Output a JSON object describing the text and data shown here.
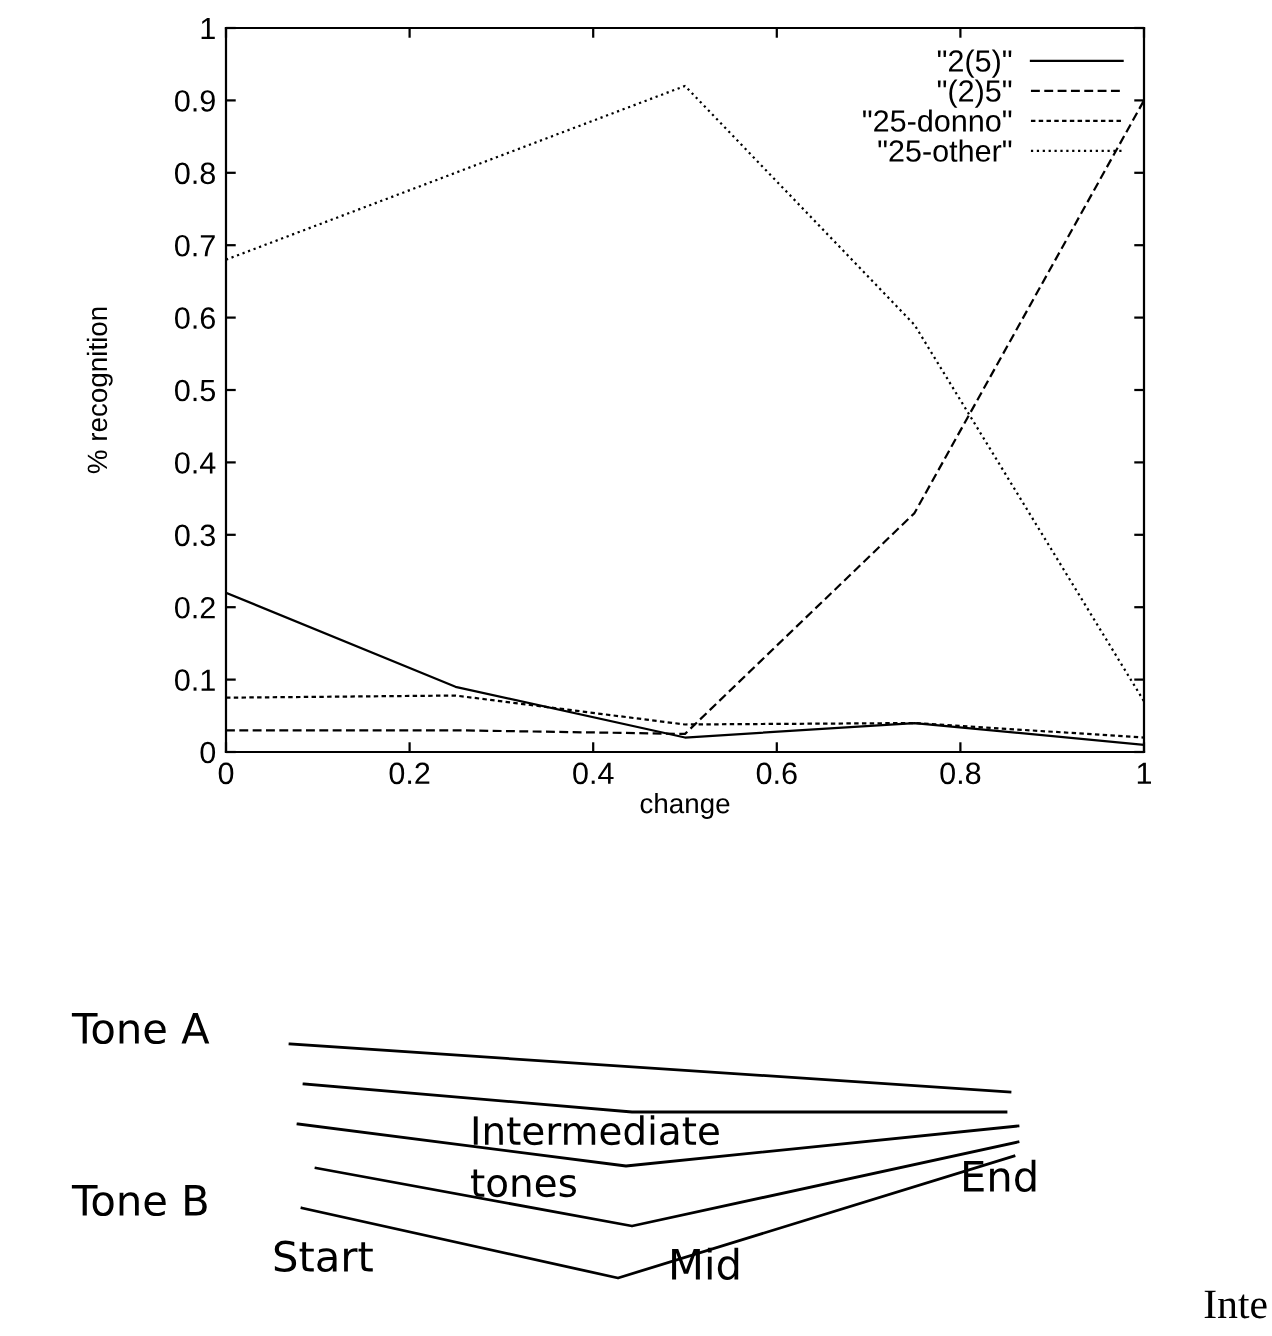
{
  "chart_data": [
    {
      "type": "line",
      "xlabel": "change",
      "ylabel": "% recognition",
      "x": [
        0,
        0.25,
        0.5,
        0.75,
        1
      ],
      "xlim": [
        0,
        1
      ],
      "xticks": [
        0,
        0.2,
        0.4,
        0.6,
        0.8,
        1
      ],
      "ylim": [
        0,
        1
      ],
      "yticks": [
        0,
        0.1,
        0.2,
        0.3,
        0.4,
        0.5,
        0.6,
        0.7,
        0.8,
        0.9,
        1
      ],
      "grid": false,
      "legend": "top right",
      "series": [
        {
          "name": "\"2(5)\"",
          "color": "#000000",
          "line_style": "solid",
          "values": [
            0.22,
            0.09,
            0.02,
            0.04,
            0.01
          ]
        },
        {
          "name": "\"(2)5\"",
          "color": "#000000",
          "line_style": "dashed",
          "values": [
            0.03,
            0.03,
            0.025,
            0.33,
            0.9
          ]
        },
        {
          "name": "\"25-donno\"",
          "color": "#000000",
          "line_style": "dashed",
          "values": [
            0.075,
            0.078,
            0.038,
            0.04,
            0.02
          ]
        },
        {
          "name": "\"25-other\"",
          "color": "#000000",
          "line_style": "dotted",
          "values": [
            0.68,
            0.8,
            0.92,
            0.59,
            0.07
          ]
        }
      ]
    },
    {
      "type": "other",
      "annotations": [
        "Tone A",
        "Tone B",
        "Start",
        "Intermediate",
        "tones",
        "End",
        "Mid",
        "Inte"
      ]
    }
  ]
}
